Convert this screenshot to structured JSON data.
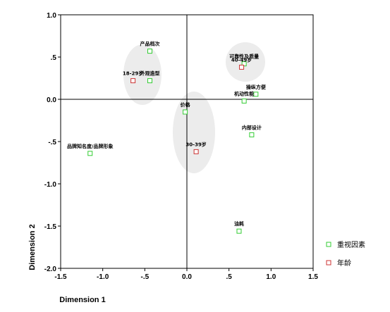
{
  "chart_data": {
    "type": "scatter",
    "title": "",
    "xlabel": "Dimension 1",
    "ylabel": "Dimension 2",
    "xlim": [
      -1.5,
      1.5
    ],
    "ylim": [
      -2.0,
      1.0
    ],
    "x_ticks": [
      "-1.5",
      "-1.0",
      "-.5",
      "0.0",
      ".5",
      "1.0",
      "1.5"
    ],
    "y_ticks": [
      "1.0",
      ".5",
      "0.0",
      "-.5",
      "-1.0",
      "-1.5",
      "-2.0"
    ],
    "legend_position": "right",
    "series": [
      {
        "name": "重视因素",
        "marker": "square",
        "color": "#33cc33",
        "points": [
          {
            "label": "产品档次",
            "x": -0.44,
            "y": 0.57
          },
          {
            "label": "外观造型",
            "x": -0.44,
            "y": 0.22
          },
          {
            "label": "可靠性及质量",
            "x": 0.68,
            "y": 0.42
          },
          {
            "label": "操纵方便",
            "x": 0.82,
            "y": 0.06
          },
          {
            "label": "机动性能",
            "x": 0.68,
            "y": -0.02
          },
          {
            "label": "价格",
            "x": -0.02,
            "y": -0.15
          },
          {
            "label": "内部设计",
            "x": 0.77,
            "y": -0.42
          },
          {
            "label": "品牌知名度/品牌形象",
            "x": -1.15,
            "y": -0.64
          },
          {
            "label": "油耗",
            "x": 0.62,
            "y": -1.56
          }
        ]
      },
      {
        "name": "年龄",
        "marker": "square",
        "color": "#cc3333",
        "points": [
          {
            "label": "18-29岁",
            "x": -0.64,
            "y": 0.22
          },
          {
            "label": "40-49岁",
            "x": 0.65,
            "y": 0.38
          },
          {
            "label": "30-39岁",
            "x": 0.11,
            "y": -0.62
          }
        ]
      }
    ]
  }
}
